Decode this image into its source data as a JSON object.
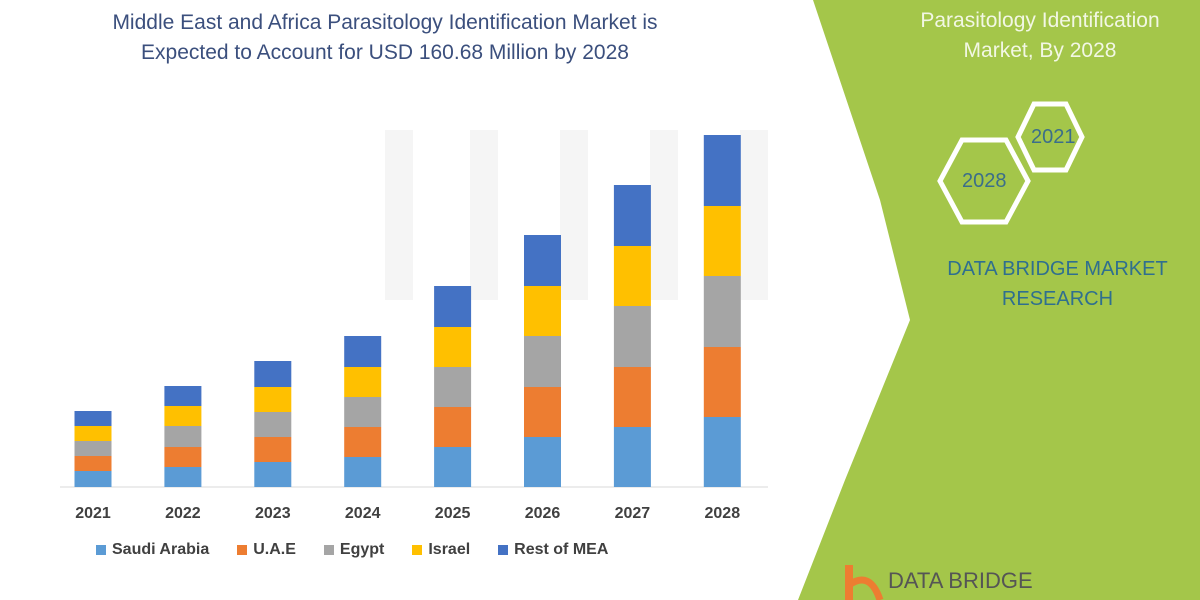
{
  "title_line1": "Middle East and Africa Parasitology Identification Market is",
  "title_line2": "Expected to Account for USD 160.68 Million by 2028",
  "side_panel": {
    "title_line1": "Parasitology Identification",
    "title_line2": "Market, By 2028",
    "hex_years": [
      "2021",
      "2028"
    ],
    "brand_line1": "DATA BRIDGE MARKET",
    "brand_line2": "RESEARCH",
    "logo_text": "DATA BRIDGE",
    "accent_color": "#a4c64a"
  },
  "chart_data": {
    "type": "bar",
    "stacked": true,
    "title": "Middle East and Africa Parasitology Identification Market is Expected to Account for USD 160.68 Million by 2028",
    "categories": [
      "2021",
      "2022",
      "2023",
      "2024",
      "2025",
      "2026",
      "2027",
      "2028"
    ],
    "y_axis_shown": false,
    "grid": false,
    "legend_placement": "bottom",
    "series": [
      {
        "name": "Saudi Arabia",
        "color": "#5b9bd5",
        "values": [
          16,
          20,
          25,
          30,
          40,
          50,
          60,
          70
        ]
      },
      {
        "name": "U.A.E",
        "color": "#ed7d31",
        "values": [
          15,
          20,
          25,
          30,
          40,
          50,
          60,
          70
        ]
      },
      {
        "name": "Egypt",
        "color": "#a5a5a5",
        "values": [
          15,
          21,
          25,
          30,
          40,
          51,
          61,
          71
        ]
      },
      {
        "name": "Israel",
        "color": "#ffc000",
        "values": [
          15,
          20,
          25,
          30,
          40,
          50,
          60,
          70
        ]
      },
      {
        "name": "Rest of MEA",
        "color": "#4472c4",
        "values": [
          15,
          20,
          26,
          31,
          41,
          51,
          61,
          71
        ]
      }
    ]
  }
}
